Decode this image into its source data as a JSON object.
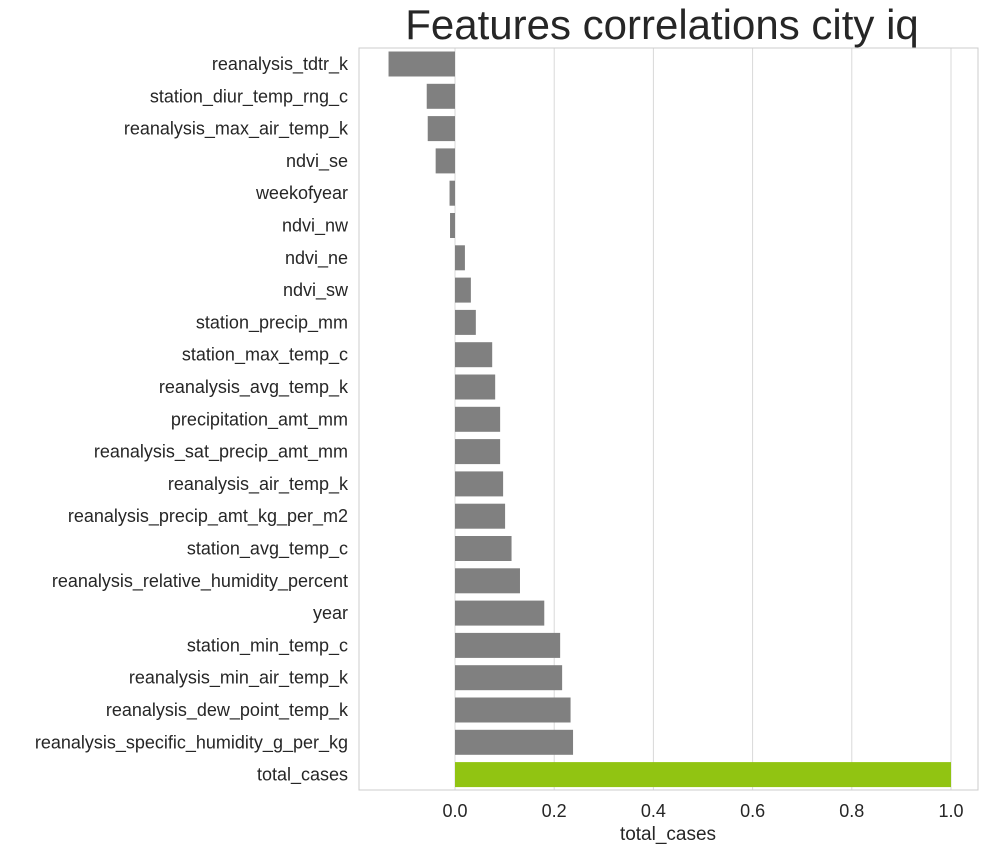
{
  "chart_data": {
    "type": "bar",
    "orientation": "horizontal",
    "title": "Features correlations city iq",
    "xlabel": "total_cases",
    "ylabel": "",
    "xlim": [
      -0.2,
      1.06
    ],
    "xticks": [
      "0.0",
      "0.2",
      "0.4",
      "0.6",
      "0.8",
      "1.0"
    ],
    "xtick_values": [
      0.0,
      0.2,
      0.4,
      0.6,
      0.8,
      1.0
    ],
    "grid": true,
    "default_bar_color": "#808080",
    "highlight_bar_color": "#91c412",
    "categories": [
      "reanalysis_tdtr_k",
      "station_diur_temp_rng_c",
      "reanalysis_max_air_temp_k",
      "ndvi_se",
      "weekofyear",
      "ndvi_nw",
      "ndvi_ne",
      "ndvi_sw",
      "station_precip_mm",
      "station_max_temp_c",
      "reanalysis_avg_temp_k",
      "precipitation_amt_mm",
      "reanalysis_sat_precip_amt_mm",
      "reanalysis_air_temp_k",
      "reanalysis_precip_amt_kg_per_m2",
      "station_avg_temp_c",
      "reanalysis_relative_humidity_percent",
      "year",
      "station_min_temp_c",
      "reanalysis_min_air_temp_k",
      "reanalysis_dew_point_temp_k",
      "reanalysis_specific_humidity_g_per_kg",
      "total_cases"
    ],
    "values": [
      -0.134,
      -0.057,
      -0.055,
      -0.039,
      -0.011,
      -0.01,
      0.02,
      0.032,
      0.042,
      0.075,
      0.081,
      0.091,
      0.091,
      0.097,
      0.101,
      0.114,
      0.131,
      0.18,
      0.212,
      0.216,
      0.233,
      0.238,
      1.0
    ],
    "highlight_category": "total_cases"
  }
}
